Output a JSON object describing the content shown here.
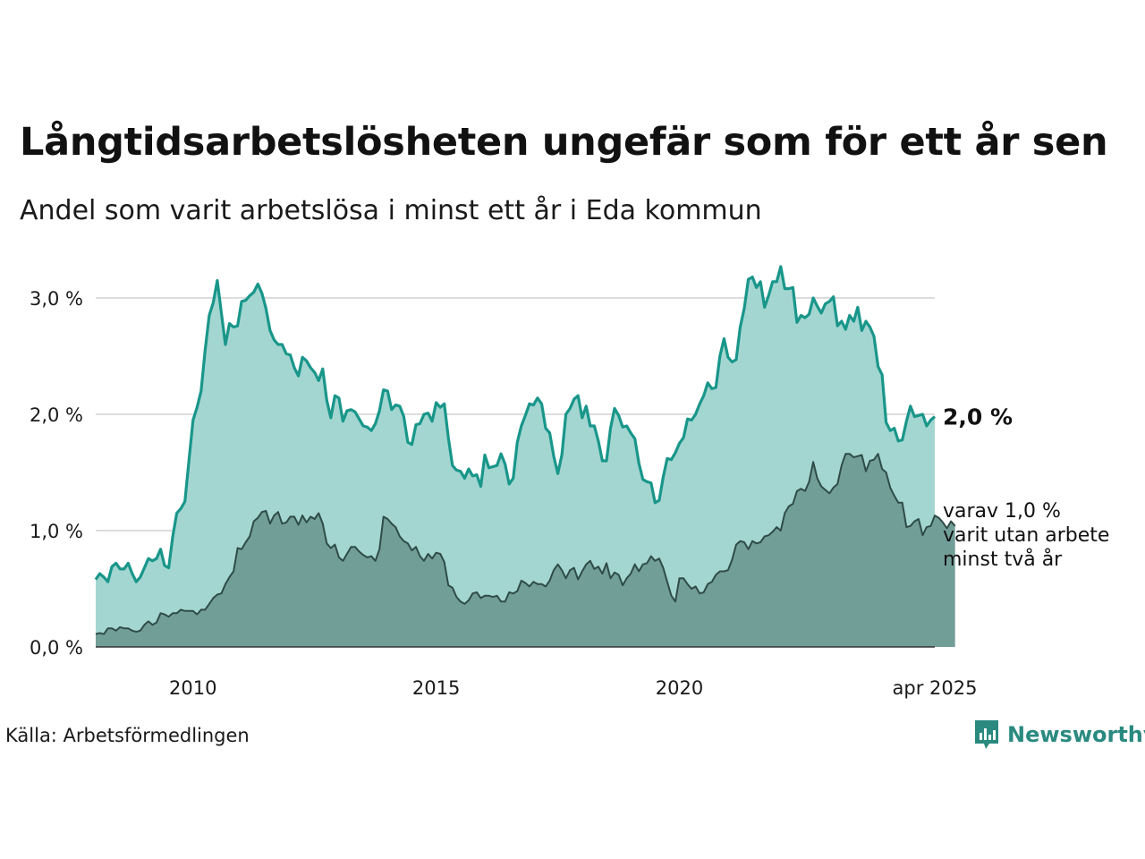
{
  "header": {
    "title": "Långtidsarbetslösheten ungefär som för ett år sen",
    "subtitle": "Andel som varit arbetslösa i minst ett år i Eda kommun"
  },
  "footer": {
    "source": "Källa: Arbetsförmedlingen",
    "brand": "Newsworthy",
    "brand_icon": "newsworthy-logo-icon"
  },
  "colors": {
    "total_line": "#19968a",
    "total_fill": "#a4d6d1",
    "two_year_line": "#2f4c48",
    "two_year_fill": "#729e98",
    "grid": "#dddddd",
    "brand": "#2a8a80"
  },
  "annotations": {
    "total_end_label": "2,0 %",
    "two_year_end_label_lines": [
      "varav 1,0 %",
      "varit utan arbete",
      "minst två år"
    ]
  },
  "chart_data": {
    "type": "area",
    "x_start": "2008-01",
    "x_end": "2025-04",
    "frequency": "monthly",
    "ylim": [
      0,
      3.3
    ],
    "y_ticks": [
      0,
      1,
      2,
      3
    ],
    "y_tick_labels": [
      "0,0 %",
      "1,0 %",
      "2,0 %",
      "3,0 %"
    ],
    "x_ticks": [
      "2010-01",
      "2015-01",
      "2020-01",
      "2025-04"
    ],
    "x_tick_labels": [
      "2010",
      "2015",
      "2020",
      "apr 2025"
    ],
    "grid": "horizontal",
    "series": [
      {
        "name": "",
        "values": [
          0.58,
          0.63,
          0.6,
          0.56,
          0.69,
          0.72,
          0.67,
          0.67,
          0.72,
          0.63,
          0.56,
          0.6,
          0.68,
          0.76,
          0.74,
          0.76,
          0.84,
          0.7,
          0.68,
          0.95,
          1.15,
          1.19,
          1.25,
          1.6,
          1.95,
          2.06,
          2.2,
          2.55,
          2.85,
          2.96,
          3.15,
          2.87,
          2.6,
          2.78,
          2.75,
          2.76,
          2.97,
          2.98,
          3.02,
          3.05,
          3.12,
          3.04,
          2.91,
          2.72,
          2.64,
          2.6,
          2.6,
          2.52,
          2.51,
          2.4,
          2.33,
          2.49,
          2.46,
          2.4,
          2.36,
          2.29,
          2.39,
          2.12,
          1.97,
          2.16,
          2.14,
          1.94,
          2.03,
          2.04,
          2.02,
          1.96,
          1.9,
          1.89,
          1.86,
          1.92,
          2.03,
          2.21,
          2.2,
          2.04,
          2.08,
          2.07,
          1.98,
          1.76,
          1.74,
          1.91,
          1.92,
          2.0,
          2.01,
          1.94,
          2.1,
          2.06,
          2.09,
          1.8,
          1.56,
          1.52,
          1.51,
          1.45,
          1.53,
          1.47,
          1.48,
          1.38,
          1.65,
          1.54,
          1.55,
          1.56,
          1.66,
          1.57,
          1.4,
          1.45,
          1.76,
          1.9,
          1.99,
          2.09,
          2.08,
          2.14,
          2.09,
          1.88,
          1.84,
          1.64,
          1.49,
          1.65,
          2.0,
          2.05,
          2.13,
          2.16,
          1.97,
          2.07,
          1.9,
          1.9,
          1.77,
          1.6,
          1.6,
          1.88,
          2.05,
          1.99,
          1.89,
          1.9,
          1.84,
          1.79,
          1.58,
          1.44,
          1.42,
          1.41,
          1.24,
          1.26,
          1.46,
          1.62,
          1.61,
          1.67,
          1.75,
          1.8,
          1.96,
          1.95,
          2.0,
          2.09,
          2.16,
          2.27,
          2.22,
          2.23,
          2.5,
          2.65,
          2.49,
          2.45,
          2.47,
          2.75,
          2.91,
          3.16,
          3.18,
          3.09,
          3.14,
          2.92,
          3.02,
          3.14,
          3.14,
          3.27,
          3.08,
          3.08,
          3.09,
          2.79,
          2.85,
          2.83,
          2.86,
          3.0,
          2.93,
          2.87,
          2.95,
          2.97,
          3.01,
          2.76,
          2.8,
          2.73,
          2.85,
          2.8,
          2.92,
          2.72,
          2.8,
          2.75,
          2.67,
          2.41,
          2.34,
          1.93,
          1.86,
          1.88,
          1.77,
          1.78,
          1.94,
          2.07,
          1.98,
          1.99,
          2.0,
          1.9,
          1.95,
          1.98
        ]
      },
      {
        "name": "",
        "values": [
          0.11,
          0.12,
          0.11,
          0.16,
          0.16,
          0.14,
          0.17,
          0.16,
          0.16,
          0.14,
          0.13,
          0.14,
          0.19,
          0.22,
          0.19,
          0.21,
          0.29,
          0.28,
          0.26,
          0.29,
          0.29,
          0.32,
          0.31,
          0.31,
          0.31,
          0.28,
          0.32,
          0.32,
          0.37,
          0.42,
          0.45,
          0.46,
          0.54,
          0.6,
          0.65,
          0.85,
          0.84,
          0.9,
          0.95,
          1.08,
          1.11,
          1.16,
          1.17,
          1.06,
          1.13,
          1.16,
          1.06,
          1.07,
          1.12,
          1.12,
          1.05,
          1.13,
          1.07,
          1.12,
          1.1,
          1.15,
          1.06,
          0.89,
          0.85,
          0.88,
          0.77,
          0.74,
          0.8,
          0.86,
          0.86,
          0.82,
          0.79,
          0.77,
          0.78,
          0.74,
          0.84,
          1.12,
          1.1,
          1.06,
          1.03,
          0.95,
          0.91,
          0.89,
          0.83,
          0.86,
          0.78,
          0.74,
          0.8,
          0.76,
          0.81,
          0.8,
          0.73,
          0.53,
          0.51,
          0.43,
          0.39,
          0.37,
          0.4,
          0.46,
          0.47,
          0.42,
          0.44,
          0.44,
          0.43,
          0.44,
          0.39,
          0.39,
          0.47,
          0.46,
          0.48,
          0.57,
          0.55,
          0.52,
          0.56,
          0.54,
          0.54,
          0.52,
          0.57,
          0.66,
          0.71,
          0.66,
          0.59,
          0.66,
          0.68,
          0.58,
          0.65,
          0.71,
          0.74,
          0.67,
          0.69,
          0.63,
          0.72,
          0.59,
          0.64,
          0.62,
          0.53,
          0.59,
          0.63,
          0.71,
          0.65,
          0.71,
          0.72,
          0.78,
          0.74,
          0.76,
          0.68,
          0.56,
          0.44,
          0.39,
          0.59,
          0.59,
          0.54,
          0.5,
          0.52,
          0.46,
          0.47,
          0.54,
          0.56,
          0.62,
          0.65,
          0.65,
          0.66,
          0.75,
          0.88,
          0.91,
          0.9,
          0.84,
          0.91,
          0.89,
          0.9,
          0.95,
          0.96,
          0.99,
          1.03,
          1.0,
          1.15,
          1.21,
          1.23,
          1.34,
          1.36,
          1.34,
          1.42,
          1.59,
          1.45,
          1.38,
          1.35,
          1.32,
          1.37,
          1.4,
          1.56,
          1.66,
          1.66,
          1.63,
          1.64,
          1.65,
          1.51,
          1.6,
          1.61,
          1.66,
          1.53,
          1.5,
          1.37,
          1.3,
          1.24,
          1.24,
          1.03,
          1.04,
          1.08,
          1.1,
          0.96,
          1.03,
          1.04,
          1.13,
          1.11,
          1.07,
          1.02,
          1.08,
          1.04
        ]
      }
    ]
  }
}
